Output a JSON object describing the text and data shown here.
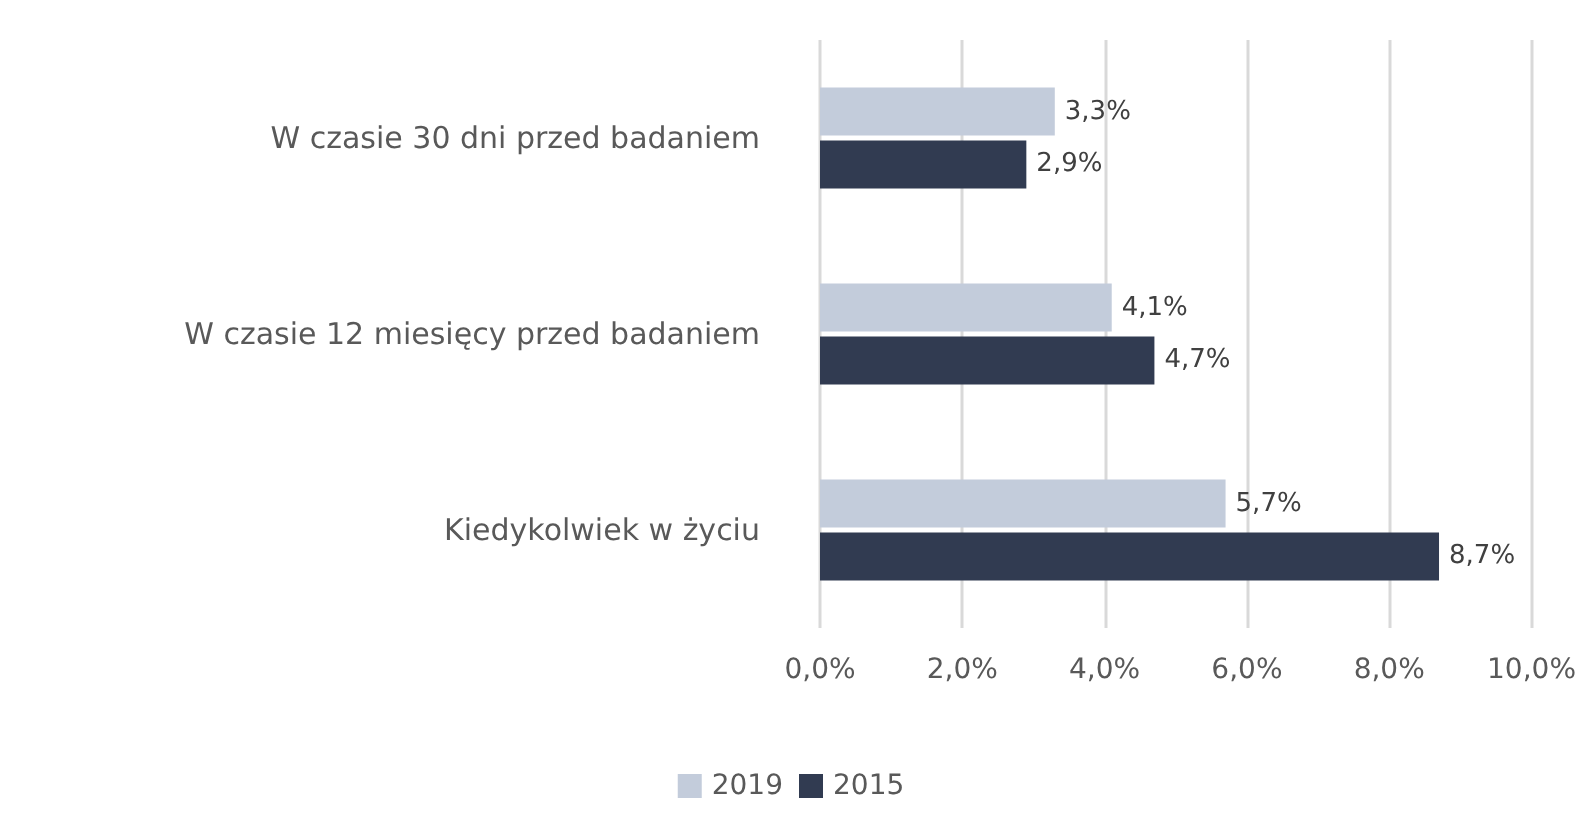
{
  "chart_data": {
    "type": "bar",
    "orientation": "horizontal",
    "categories": [
      "W czasie 30 dni przed badaniem",
      "W czasie 12 miesięcy przed badaniem",
      "Kiedykolwiek w życiu"
    ],
    "series": [
      {
        "name": "2019",
        "color": "#c3ccdb",
        "values": [
          3.3,
          4.1,
          5.7
        ],
        "value_labels": [
          "3,3%",
          "4,1%",
          "5,7%"
        ]
      },
      {
        "name": "2015",
        "color": "#313b51",
        "values": [
          2.9,
          4.7,
          8.7
        ],
        "value_labels": [
          "2,9%",
          "4,7%",
          "8,7%"
        ]
      }
    ],
    "xlim": [
      0,
      10
    ],
    "xticks": [
      {
        "value": 0,
        "label": "0,0%"
      },
      {
        "value": 2,
        "label": "2,0%"
      },
      {
        "value": 4,
        "label": "4,0%"
      },
      {
        "value": 6,
        "label": "6,0%"
      },
      {
        "value": 8,
        "label": "8,0%"
      },
      {
        "value": 10,
        "label": "10,0%"
      }
    ],
    "grid": "x",
    "legend": "bottom"
  }
}
